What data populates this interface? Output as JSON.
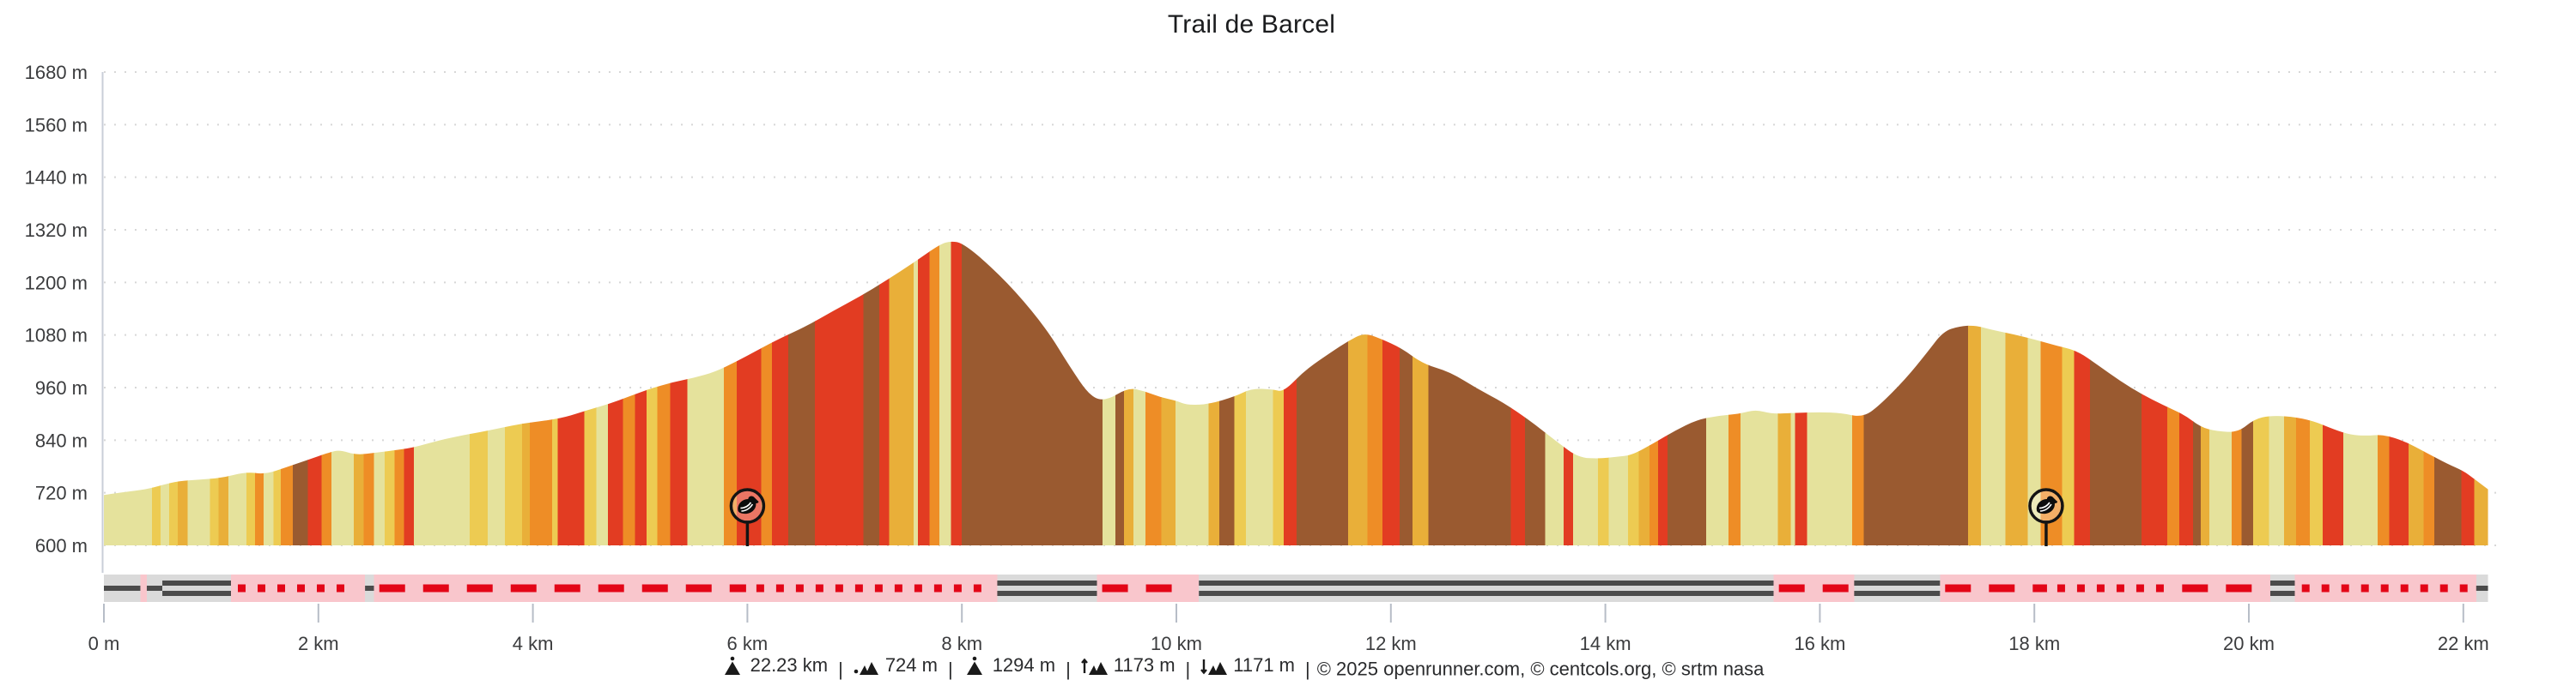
{
  "title": "Trail de Barcel",
  "chart_data": {
    "type": "area",
    "title": "Trail de Barcel",
    "xlabel": "distance",
    "ylabel": "elevation",
    "x_unit": "km",
    "y_unit": "m",
    "xlim": [
      0,
      22.23
    ],
    "ylim": [
      600,
      1680
    ],
    "grid": "dotted-horizontal",
    "y_ticks": [
      1680,
      1560,
      1440,
      1320,
      1200,
      1080,
      960,
      840,
      720,
      600
    ],
    "y_tick_labels": [
      "1680 m",
      "1560 m",
      "1440 m",
      "1320 m",
      "1200 m",
      "1080 m",
      "960 m",
      "840 m",
      "720 m",
      "600 m"
    ],
    "x_ticks_km": [
      0,
      2,
      4,
      6,
      8,
      10,
      12,
      14,
      16,
      18,
      20,
      22
    ],
    "x_tick_labels": [
      "0 m",
      "2 km",
      "4 km",
      "6 km",
      "8 km",
      "10 km",
      "12 km",
      "14 km",
      "16 km",
      "18 km",
      "20 km",
      "22 km"
    ],
    "profile_points_km_m": [
      [
        0,
        715
      ],
      [
        0.2,
        722
      ],
      [
        0.4,
        728
      ],
      [
        0.55,
        738
      ],
      [
        0.7,
        747
      ],
      [
        0.9,
        750
      ],
      [
        1.1,
        754
      ],
      [
        1.33,
        768
      ],
      [
        1.5,
        762
      ],
      [
        1.7,
        778
      ],
      [
        1.9,
        795
      ],
      [
        2.1,
        812
      ],
      [
        2.2,
        818
      ],
      [
        2.35,
        806
      ],
      [
        2.55,
        812
      ],
      [
        2.75,
        818
      ],
      [
        2.9,
        824
      ],
      [
        3.1,
        838
      ],
      [
        3.3,
        849
      ],
      [
        3.5,
        858
      ],
      [
        3.7,
        868
      ],
      [
        3.9,
        878
      ],
      [
        4.1,
        884
      ],
      [
        4.3,
        892
      ],
      [
        4.5,
        908
      ],
      [
        4.7,
        922
      ],
      [
        4.9,
        940
      ],
      [
        5.1,
        958
      ],
      [
        5.3,
        972
      ],
      [
        5.5,
        982
      ],
      [
        5.7,
        996
      ],
      [
        5.9,
        1020
      ],
      [
        6.1,
        1046
      ],
      [
        6.3,
        1072
      ],
      [
        6.55,
        1100
      ],
      [
        6.8,
        1135
      ],
      [
        7.05,
        1168
      ],
      [
        7.3,
        1205
      ],
      [
        7.55,
        1245
      ],
      [
        7.8,
        1288
      ],
      [
        7.9,
        1294
      ],
      [
        8,
        1290
      ],
      [
        8.2,
        1252
      ],
      [
        8.5,
        1180
      ],
      [
        8.8,
        1090
      ],
      [
        9,
        1010
      ],
      [
        9.2,
        938
      ],
      [
        9.35,
        930
      ],
      [
        9.55,
        960
      ],
      [
        9.7,
        952
      ],
      [
        9.85,
        938
      ],
      [
        10,
        930
      ],
      [
        10.1,
        920
      ],
      [
        10.3,
        922
      ],
      [
        10.55,
        940
      ],
      [
        10.7,
        958
      ],
      [
        10.9,
        956
      ],
      [
        11,
        950
      ],
      [
        11.2,
        1000
      ],
      [
        11.45,
        1042
      ],
      [
        11.6,
        1066
      ],
      [
        11.75,
        1085
      ],
      [
        11.9,
        1072
      ],
      [
        12.1,
        1050
      ],
      [
        12.3,
        1014
      ],
      [
        12.55,
        996
      ],
      [
        12.8,
        958
      ],
      [
        13.05,
        926
      ],
      [
        13.3,
        884
      ],
      [
        13.55,
        836
      ],
      [
        13.75,
        800
      ],
      [
        13.95,
        798
      ],
      [
        14.1,
        802
      ],
      [
        14.25,
        806
      ],
      [
        14.45,
        833
      ],
      [
        14.65,
        862
      ],
      [
        14.85,
        886
      ],
      [
        15.05,
        896
      ],
      [
        15.25,
        900
      ],
      [
        15.4,
        910
      ],
      [
        15.55,
        900
      ],
      [
        15.75,
        902
      ],
      [
        16,
        904
      ],
      [
        16.2,
        902
      ],
      [
        16.4,
        892
      ],
      [
        16.55,
        918
      ],
      [
        16.8,
        980
      ],
      [
        17,
        1040
      ],
      [
        17.15,
        1088
      ],
      [
        17.3,
        1100
      ],
      [
        17.45,
        1102
      ],
      [
        17.6,
        1092
      ],
      [
        17.8,
        1082
      ],
      [
        18,
        1070
      ],
      [
        18.2,
        1056
      ],
      [
        18.4,
        1044
      ],
      [
        18.6,
        1010
      ],
      [
        18.8,
        975
      ],
      [
        19,
        945
      ],
      [
        19.2,
        920
      ],
      [
        19.4,
        898
      ],
      [
        19.55,
        870
      ],
      [
        19.7,
        860
      ],
      [
        19.9,
        858
      ],
      [
        20.05,
        888
      ],
      [
        20.2,
        896
      ],
      [
        20.4,
        894
      ],
      [
        20.6,
        884
      ],
      [
        20.8,
        864
      ],
      [
        20.95,
        852
      ],
      [
        21.1,
        850
      ],
      [
        21.25,
        853
      ],
      [
        21.45,
        838
      ],
      [
        21.65,
        812
      ],
      [
        21.85,
        786
      ],
      [
        22,
        770
      ],
      [
        22.1,
        752
      ],
      [
        22.23,
        728
      ]
    ],
    "grade_palette": {
      "p": "#e5e29c",
      "y": "#edcb52",
      "a": "#e9af39",
      "o": "#ee8d26",
      "r": "#e23c22",
      "b": "#9a5a30"
    },
    "grade_bands": [
      [
        0,
        0.45,
        "p"
      ],
      [
        0.45,
        0.53,
        "y"
      ],
      [
        0.53,
        0.61,
        "p"
      ],
      [
        0.61,
        0.69,
        "y"
      ],
      [
        0.69,
        0.78,
        "a"
      ],
      [
        0.78,
        0.99,
        "p"
      ],
      [
        0.99,
        1.07,
        "y"
      ],
      [
        1.07,
        1.16,
        "a"
      ],
      [
        1.16,
        1.33,
        "p"
      ],
      [
        1.33,
        1.41,
        "y"
      ],
      [
        1.41,
        1.49,
        "o"
      ],
      [
        1.49,
        1.58,
        "p"
      ],
      [
        1.58,
        1.65,
        "y"
      ],
      [
        1.65,
        1.76,
        "o"
      ],
      [
        1.76,
        1.9,
        "b"
      ],
      [
        1.9,
        2.03,
        "r"
      ],
      [
        2.03,
        2.12,
        "o"
      ],
      [
        2.12,
        2.33,
        "p"
      ],
      [
        2.33,
        2.42,
        "a"
      ],
      [
        2.42,
        2.52,
        "o"
      ],
      [
        2.52,
        2.62,
        "p"
      ],
      [
        2.62,
        2.71,
        "y"
      ],
      [
        2.71,
        2.8,
        "o"
      ],
      [
        2.8,
        2.89,
        "r"
      ],
      [
        2.89,
        3.41,
        "p"
      ],
      [
        3.41,
        3.58,
        "y"
      ],
      [
        3.58,
        3.74,
        "p"
      ],
      [
        3.74,
        3.9,
        "y"
      ],
      [
        3.9,
        3.97,
        "a"
      ],
      [
        3.97,
        4.18,
        "o"
      ],
      [
        4.18,
        4.23,
        "y"
      ],
      [
        4.23,
        4.48,
        "r"
      ],
      [
        4.48,
        4.59,
        "y"
      ],
      [
        4.59,
        4.7,
        "p"
      ],
      [
        4.7,
        4.84,
        "r"
      ],
      [
        4.84,
        4.95,
        "o"
      ],
      [
        4.95,
        5.06,
        "r"
      ],
      [
        5.06,
        5.16,
        "y"
      ],
      [
        5.16,
        5.28,
        "o"
      ],
      [
        5.28,
        5.44,
        "r"
      ],
      [
        5.44,
        5.78,
        "p"
      ],
      [
        5.78,
        5.9,
        "o"
      ],
      [
        5.9,
        6.13,
        "r"
      ],
      [
        6.13,
        6.23,
        "o"
      ],
      [
        6.23,
        6.38,
        "r"
      ],
      [
        6.38,
        6.63,
        "b"
      ],
      [
        6.63,
        7.08,
        "r"
      ],
      [
        7.08,
        7.23,
        "b"
      ],
      [
        7.23,
        7.32,
        "r"
      ],
      [
        7.32,
        7.55,
        "a"
      ],
      [
        7.55,
        7.59,
        "p"
      ],
      [
        7.59,
        7.7,
        "r"
      ],
      [
        7.7,
        7.79,
        "o"
      ],
      [
        7.79,
        7.9,
        "p"
      ],
      [
        7.9,
        8,
        "r"
      ],
      [
        8,
        9.31,
        "b"
      ],
      [
        9.31,
        9.43,
        "p"
      ],
      [
        9.43,
        9.51,
        "b"
      ],
      [
        9.51,
        9.6,
        "a"
      ],
      [
        9.6,
        9.71,
        "p"
      ],
      [
        9.71,
        9.86,
        "o"
      ],
      [
        9.86,
        9.99,
        "a"
      ],
      [
        9.99,
        10.3,
        "p"
      ],
      [
        10.3,
        10.4,
        "a"
      ],
      [
        10.4,
        10.54,
        "b"
      ],
      [
        10.54,
        10.65,
        "y"
      ],
      [
        10.65,
        10.9,
        "p"
      ],
      [
        10.9,
        11,
        "y"
      ],
      [
        11,
        11.12,
        "r"
      ],
      [
        11.12,
        11.6,
        "b"
      ],
      [
        11.6,
        11.78,
        "a"
      ],
      [
        11.78,
        11.92,
        "o"
      ],
      [
        11.92,
        12.08,
        "r"
      ],
      [
        12.08,
        12.2,
        "b"
      ],
      [
        12.2,
        12.35,
        "a"
      ],
      [
        12.35,
        13.12,
        "b"
      ],
      [
        13.12,
        13.25,
        "r"
      ],
      [
        13.25,
        13.44,
        "b"
      ],
      [
        13.44,
        13.61,
        "p"
      ],
      [
        13.61,
        13.7,
        "r"
      ],
      [
        13.7,
        13.93,
        "p"
      ],
      [
        13.93,
        14.03,
        "y"
      ],
      [
        14.03,
        14.21,
        "p"
      ],
      [
        14.21,
        14.31,
        "y"
      ],
      [
        14.31,
        14.41,
        "a"
      ],
      [
        14.41,
        14.49,
        "o"
      ],
      [
        14.49,
        14.58,
        "r"
      ],
      [
        14.58,
        14.94,
        "b"
      ],
      [
        14.94,
        15.15,
        "p"
      ],
      [
        15.15,
        15.26,
        "o"
      ],
      [
        15.26,
        15.61,
        "p"
      ],
      [
        15.61,
        15.73,
        "a"
      ],
      [
        15.73,
        15.77,
        "p"
      ],
      [
        15.77,
        15.88,
        "r"
      ],
      [
        15.88,
        16.3,
        "p"
      ],
      [
        16.3,
        16.41,
        "o"
      ],
      [
        16.41,
        17.38,
        "b"
      ],
      [
        17.38,
        17.5,
        "a"
      ],
      [
        17.5,
        17.73,
        "p"
      ],
      [
        17.73,
        17.94,
        "a"
      ],
      [
        17.94,
        18.06,
        "p"
      ],
      [
        18.06,
        18.26,
        "o"
      ],
      [
        18.26,
        18.37,
        "y"
      ],
      [
        18.37,
        18.52,
        "r"
      ],
      [
        18.52,
        19,
        "b"
      ],
      [
        19,
        19.24,
        "r"
      ],
      [
        19.24,
        19.35,
        "o"
      ],
      [
        19.35,
        19.48,
        "r"
      ],
      [
        19.48,
        19.55,
        "b"
      ],
      [
        19.55,
        19.63,
        "a"
      ],
      [
        19.63,
        19.84,
        "p"
      ],
      [
        19.84,
        19.93,
        "o"
      ],
      [
        19.93,
        20.04,
        "b"
      ],
      [
        20.04,
        20.19,
        "y"
      ],
      [
        20.19,
        20.33,
        "p"
      ],
      [
        20.33,
        20.44,
        "a"
      ],
      [
        20.44,
        20.57,
        "o"
      ],
      [
        20.57,
        20.69,
        "y"
      ],
      [
        20.69,
        20.88,
        "r"
      ],
      [
        20.88,
        21.2,
        "p"
      ],
      [
        21.2,
        21.31,
        "o"
      ],
      [
        21.31,
        21.49,
        "r"
      ],
      [
        21.49,
        21.63,
        "a"
      ],
      [
        21.63,
        21.73,
        "o"
      ],
      [
        21.73,
        21.98,
        "b"
      ],
      [
        21.98,
        22.1,
        "r"
      ],
      [
        22.1,
        22.23,
        "a"
      ]
    ],
    "surface_colors": {
      "road_bg": "#dadada",
      "road_line": "#4b4b4b",
      "trail_bg": "#f9c6cc",
      "trail_mark": "#e30617"
    },
    "surface_segments": [
      [
        0,
        0.34,
        "road_solid"
      ],
      [
        0.34,
        0.4,
        "trail_dash"
      ],
      [
        0.4,
        0.545,
        "road_solid"
      ],
      [
        0.545,
        1.185,
        "road_double"
      ],
      [
        1.185,
        2.435,
        "trail_dots"
      ],
      [
        2.435,
        2.52,
        "road_solid"
      ],
      [
        2.52,
        6.02,
        "trail_dash"
      ],
      [
        6.02,
        8.33,
        "trail_dots"
      ],
      [
        8.33,
        9.26,
        "road_double"
      ],
      [
        9.26,
        10.21,
        "trail_dash"
      ],
      [
        10.21,
        15.57,
        "road_double"
      ],
      [
        15.57,
        16.32,
        "trail_dash"
      ],
      [
        16.32,
        17.12,
        "road_double"
      ],
      [
        17.12,
        18.15,
        "trail_dash"
      ],
      [
        18.15,
        19.33,
        "trail_dots"
      ],
      [
        19.33,
        20.2,
        "trail_dash"
      ],
      [
        20.2,
        20.43,
        "road_double"
      ],
      [
        20.43,
        22.12,
        "trail_dots"
      ],
      [
        22.12,
        22.23,
        "road_solid"
      ]
    ],
    "markers": [
      {
        "km": 6.0,
        "name": "bird-poi"
      },
      {
        "km": 18.11,
        "name": "bird-poi"
      }
    ]
  },
  "footer": {
    "separator": "|",
    "stats": [
      {
        "icon": "distance-icon",
        "value": "22.23 km"
      },
      {
        "icon": "min-altitude-icon",
        "value": "724 m"
      },
      {
        "icon": "max-altitude-icon",
        "value": "1294 m"
      },
      {
        "icon": "gain-icon",
        "value": "1173 m"
      },
      {
        "icon": "loss-icon",
        "value": "1171 m"
      }
    ],
    "copyright": "© 2025 openrunner.com, © centcols.org, © srtm nasa"
  }
}
